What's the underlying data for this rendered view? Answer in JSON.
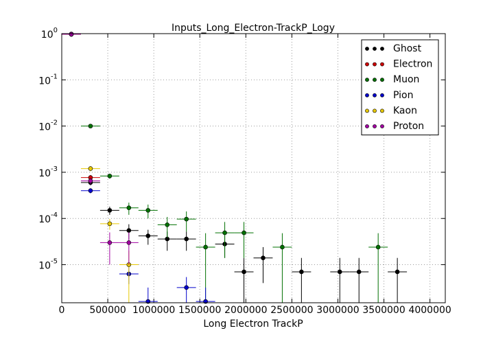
{
  "chart_data": {
    "type": "errorbar",
    "title": "Inputs_Long_Electron-TrackP_Logy",
    "x_label": "Long Electron TrackP",
    "log_y": true,
    "grid": true,
    "legend": "upper right",
    "xlim": [
      0,
      4166667
    ],
    "ylim": [
      1.5e-06,
      1
    ],
    "xticks": [
      0,
      500000,
      1000000,
      1500000,
      2000000,
      2500000,
      3000000,
      3500000,
      4000000
    ],
    "yticks": [
      {
        "value": 1,
        "label": "10",
        "power": "0"
      },
      {
        "value": 0.1,
        "label": "10",
        "power": "-1"
      },
      {
        "value": 0.01,
        "label": "10",
        "power": "-2"
      },
      {
        "value": 0.001,
        "label": "10",
        "power": "-3"
      },
      {
        "value": 0.0001,
        "label": "10",
        "power": "-4"
      },
      {
        "value": 1e-05,
        "label": "10",
        "power": "-5"
      }
    ],
    "series": [
      {
        "name": "Ghost",
        "color": "#000000",
        "xerr": 104167,
        "x": [
          104167,
          312500,
          520833,
          729167,
          937500,
          1145833,
          1354167,
          1770833,
          1979167,
          2187500,
          2604167,
          3020833,
          3229167,
          3645833
        ],
        "values": [
          0.98,
          0.0006,
          0.00015,
          5.5e-05,
          4.2e-05,
          3.6e-05,
          3.6e-05,
          2.8e-05,
          7e-06,
          1.4e-05,
          7e-06,
          7e-06,
          7e-06,
          7e-06
        ],
        "yerr": [
          0.01,
          8e-05,
          3e-05,
          2e-05,
          1.5e-05,
          1.6e-05,
          1.6e-05,
          1.4e-05,
          7e-06,
          1e-05,
          7e-06,
          7e-06,
          7e-06,
          7e-06
        ]
      },
      {
        "name": "Electron",
        "color": "#cc0000",
        "xerr": 104167,
        "x": [
          104167,
          312500
        ],
        "values": [
          0.97,
          0.00077
        ],
        "yerr": [
          0.01,
          0.0001
        ]
      },
      {
        "name": "Muon",
        "color": "#007000",
        "xerr": 104167,
        "x": [
          104167,
          312500,
          520833,
          729167,
          937500,
          1145833,
          1354167,
          1562500,
          1770833,
          1979167,
          2395833,
          3437500
        ],
        "values": [
          0.97,
          0.01,
          0.00083,
          0.00017,
          0.00015,
          7.3e-05,
          9.7e-05,
          2.4e-05,
          4.9e-05,
          4.9e-05,
          2.4e-05,
          2.4e-05
        ],
        "yerr": [
          0.01,
          0.0005,
          0.0001,
          5e-05,
          5e-05,
          3.5e-05,
          4.5e-05,
          2.4e-05,
          3.5e-05,
          3.5e-05,
          2.4e-05,
          2.4e-05
        ]
      },
      {
        "name": "Pion",
        "color": "#0000cc",
        "xerr": 104167,
        "x": [
          104167,
          312500,
          729167,
          937500,
          1354167,
          1562500
        ],
        "values": [
          0.97,
          0.0004,
          6.3e-06,
          1.6e-06,
          3.2e-06,
          1.6e-06
        ],
        "yerr": [
          0.01,
          5e-05,
          2.5e-06,
          1.6e-06,
          2.2e-06,
          1.6e-06
        ]
      },
      {
        "name": "Kaon",
        "color": "#e6c800",
        "xerr": 104167,
        "x": [
          104167,
          312500,
          520833,
          729167
        ],
        "values": [
          0.97,
          0.0012,
          7.7e-05,
          1e-05
        ],
        "yerr": [
          0.01,
          0.00015,
          2e-05,
          1e-05
        ]
      },
      {
        "name": "Proton",
        "color": "#a000a0",
        "xerr": 104167,
        "x": [
          104167,
          312500,
          520833,
          729167
        ],
        "values": [
          0.97,
          0.00065,
          3e-05,
          3e-05
        ],
        "yerr": [
          0.01,
          0.0001,
          2e-05,
          2e-05
        ]
      }
    ]
  }
}
